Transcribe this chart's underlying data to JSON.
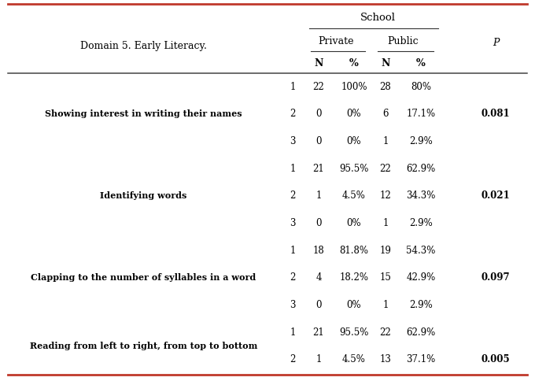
{
  "title": "School",
  "col_header_domain": "Domain 5. Early Literacy.",
  "col_header_private": "Private",
  "col_header_public": "Public",
  "col_header_p": "P",
  "rows": [
    {
      "label": "Showing interest in writing their names",
      "sub": "1",
      "N1": "22",
      "pct1": "100%",
      "N2": "28",
      "pct2": "80%",
      "p": ""
    },
    {
      "label": "",
      "sub": "2",
      "N1": "0",
      "pct1": "0%",
      "N2": "6",
      "pct2": "17.1%",
      "p": "0.081"
    },
    {
      "label": "",
      "sub": "3",
      "N1": "0",
      "pct1": "0%",
      "N2": "1",
      "pct2": "2.9%",
      "p": ""
    },
    {
      "label": "Identifying words",
      "sub": "1",
      "N1": "21",
      "pct1": "95.5%",
      "N2": "22",
      "pct2": "62.9%",
      "p": ""
    },
    {
      "label": "",
      "sub": "2",
      "N1": "1",
      "pct1": "4.5%",
      "N2": "12",
      "pct2": "34.3%",
      "p": "0.021"
    },
    {
      "label": "",
      "sub": "3",
      "N1": "0",
      "pct1": "0%",
      "N2": "1",
      "pct2": "2.9%",
      "p": ""
    },
    {
      "label": "Clapping to the number of syllables in a word",
      "sub": "1",
      "N1": "18",
      "pct1": "81.8%",
      "N2": "19",
      "pct2": "54.3%",
      "p": ""
    },
    {
      "label": "",
      "sub": "2",
      "N1": "4",
      "pct1": "18.2%",
      "N2": "15",
      "pct2": "42.9%",
      "p": "0.097"
    },
    {
      "label": "",
      "sub": "3",
      "N1": "0",
      "pct1": "0%",
      "N2": "1",
      "pct2": "2.9%",
      "p": ""
    },
    {
      "label": "Reading from left to right, from top to bottom",
      "sub": "1",
      "N1": "21",
      "pct1": "95.5%",
      "N2": "22",
      "pct2": "62.9%",
      "p": ""
    },
    {
      "label": "",
      "sub": "2",
      "N1": "1",
      "pct1": "4.5%",
      "N2": "13",
      "pct2": "37.1%",
      "p": "0.005"
    }
  ],
  "row_groups": [
    {
      "label": "Showing interest in writing their names",
      "rows": [
        0,
        1,
        2
      ],
      "p_row": 1
    },
    {
      "label": "Identifying words",
      "rows": [
        3,
        4,
        5
      ],
      "p_row": 4
    },
    {
      "label": "Clapping to the number of syllables in a word",
      "rows": [
        6,
        7,
        8
      ],
      "p_row": 7
    },
    {
      "label": "Reading from left to right, from top to bottom",
      "rows": [
        9,
        10
      ],
      "p_row": 10
    }
  ],
  "bg_color": "#ffffff",
  "border_color": "#c0392b",
  "fig_width": 6.8,
  "fig_height": 4.84,
  "dpi": 100
}
